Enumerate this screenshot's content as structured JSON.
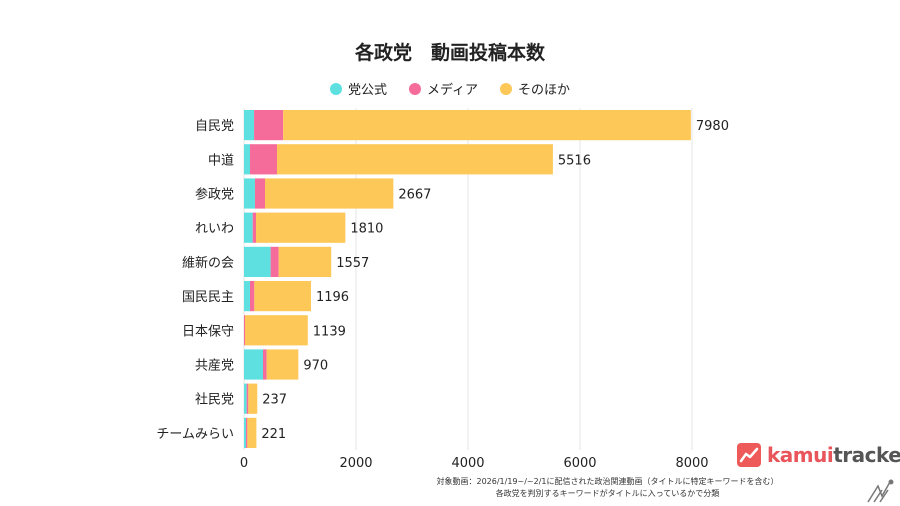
{
  "chart_data": {
    "type": "bar",
    "orientation": "horizontal",
    "stacked": true,
    "title": "各政党　動画投稿本数",
    "categories": [
      "自民党",
      "中道",
      "参政党",
      "れいわ",
      "維新の会",
      "国民民主",
      "日本保守",
      "共産党",
      "社民党",
      "チームみらい"
    ],
    "totals": [
      7980,
      5516,
      2667,
      1810,
      1557,
      1196,
      1139,
      970,
      237,
      221
    ],
    "series": [
      {
        "name": "党公式",
        "color": "#5fe0e0",
        "values": [
          180,
          107,
          196,
          155,
          476,
          107,
          0,
          339,
          48,
          36
        ]
      },
      {
        "name": "メディア",
        "color": "#f56b9a",
        "values": [
          520,
          482,
          179,
          60,
          143,
          77,
          18,
          66,
          29,
          24
        ]
      },
      {
        "name": "そのほか",
        "color": "#fdc857",
        "values": [
          7280,
          4927,
          2292,
          1595,
          938,
          1012,
          1121,
          565,
          160,
          161
        ]
      }
    ],
    "xlim": [
      0,
      8000
    ],
    "xticks": [
      "0",
      "2000",
      "4000",
      "6000",
      "8000"
    ],
    "grid": true,
    "legend_position": "top"
  },
  "footnote": [
    "対象動画：2026/1/19~/~2/1に配信された政治関連動画（タイトルに特定キーワードを含む）",
    "各政党を判別するキーワードがタイトルに入っているかで分類"
  ],
  "logo": {
    "part1": "kamui",
    "part2": "tracker"
  }
}
